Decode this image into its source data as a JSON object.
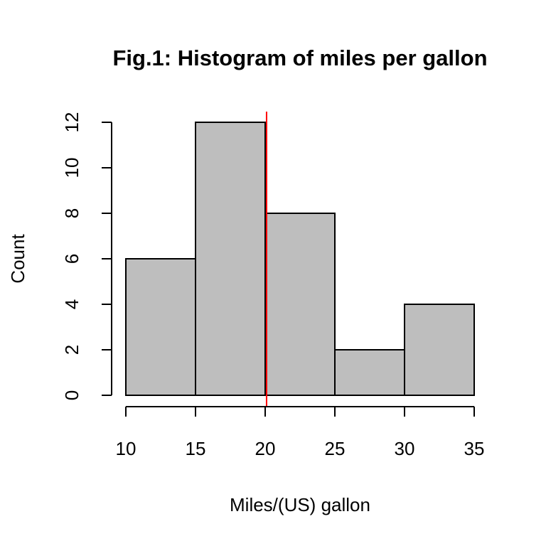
{
  "chart_data": {
    "type": "bar",
    "title": "Fig.1: Histogram of miles per gallon",
    "xlabel": "Miles/(US) gallon",
    "ylabel": "Count",
    "bins": [
      {
        "start": 10,
        "end": 15,
        "count": 6
      },
      {
        "start": 15,
        "end": 20,
        "count": 12
      },
      {
        "start": 20,
        "end": 25,
        "count": 8
      },
      {
        "start": 25,
        "end": 30,
        "count": 2
      },
      {
        "start": 30,
        "end": 35,
        "count": 4
      }
    ],
    "x_ticks": [
      10,
      15,
      20,
      25,
      30,
      35
    ],
    "y_ticks": [
      0,
      2,
      4,
      6,
      8,
      10,
      12
    ],
    "xlim": [
      10,
      35
    ],
    "ylim": [
      0,
      12
    ],
    "grid": false,
    "reference_line": {
      "x": 20.1,
      "color": "#ff0000"
    },
    "bar_color": "#bebebe"
  }
}
